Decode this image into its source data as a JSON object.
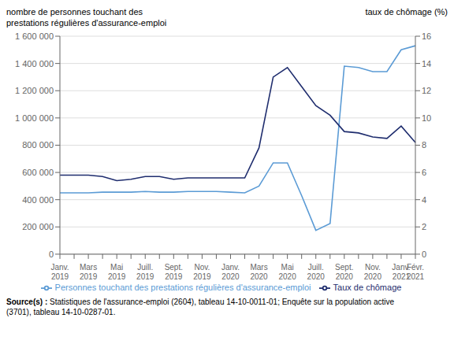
{
  "chart_data": {
    "type": "line",
    "ylabel": "nombre de personnes touchant des\nprestations régulières d'assurance-emploi",
    "y2label": "taux de chômage (%)",
    "annotations": [
      "Source(s) :",
      "Statistiques de l'assurance-emploi (2604), tableau 14-10-0011-01; Enquête sur la population active\n(3701), tableau 14-10-0287-01."
    ],
    "categories": [
      "Janv.\n2019",
      null,
      "Mars\n2019",
      null,
      "Mai\n2019",
      null,
      "Juill.\n2019",
      null,
      "Sept.\n2019",
      null,
      "Nov.\n2019",
      null,
      "Janv.\n2020",
      null,
      "Mars\n2020",
      null,
      "Mai\n2020",
      null,
      "Juill.\n2020",
      null,
      "Sept.\n2020",
      null,
      "Nov.\n2020",
      null,
      "Janv.\n2021",
      "Févr.\n2021"
    ],
    "series": [
      {
        "name": "Personnes touchant des prestations régulières d'assurance-emploi",
        "color": "#5b9bd5",
        "values": [
          450000,
          450000,
          450000,
          455000,
          455000,
          455000,
          460000,
          455000,
          455000,
          460000,
          460000,
          460000,
          455000,
          450000,
          500000,
          670000,
          670000,
          430000,
          175000,
          225000,
          1380000,
          1370000,
          1340000,
          1340000,
          1500000,
          1530000
        ]
      },
      {
        "name": "Taux de chômage",
        "color": "#1f2d6e",
        "axis": "y2",
        "values": [
          5.8,
          5.8,
          5.8,
          5.7,
          5.4,
          5.5,
          5.7,
          5.7,
          5.5,
          5.6,
          5.6,
          5.6,
          5.6,
          5.6,
          7.8,
          13.0,
          13.7,
          12.3,
          10.9,
          10.2,
          9.0,
          8.9,
          8.6,
          8.5,
          9.4,
          8.2
        ]
      }
    ],
    "ylim": [
      0,
      1600000
    ],
    "yticks": [
      0,
      {
        "value": 200000,
        "label": "200 000"
      },
      {
        "value": 400000,
        "label": "400 000"
      },
      {
        "value": 600000,
        "label": "600 000"
      },
      {
        "value": 800000,
        "label": "800 000"
      },
      {
        "value": 1000000,
        "label": "1 000 000"
      },
      {
        "value": 1200000,
        "label": "1 200 000"
      },
      {
        "value": 1400000,
        "label": "1 400 000"
      },
      {
        "value": 1600000,
        "label": "1 600 000"
      }
    ],
    "y2lim": [
      0,
      16
    ],
    "y2ticks": [
      0,
      2,
      4,
      6,
      8,
      10,
      12,
      14,
      16
    ],
    "grid": true,
    "legend": "bottom"
  }
}
